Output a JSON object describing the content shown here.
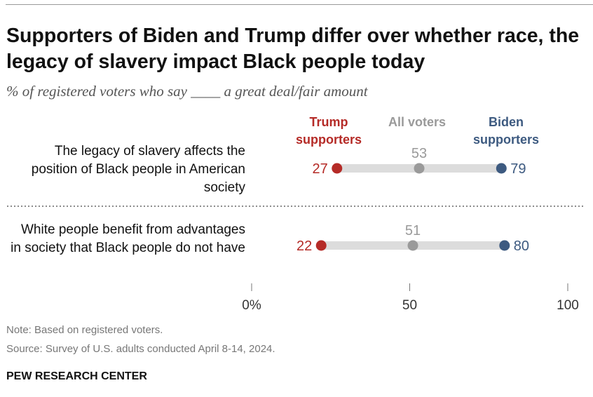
{
  "title": "Supporters of Biden and Trump differ over whether race, the legacy of slavery impact Black people today",
  "subtitle": "% of registered voters who say ____ a great deal/fair amount",
  "legend": {
    "trump": "Trump supporters",
    "all": "All voters",
    "biden": "Biden supporters"
  },
  "colors": {
    "trump": "#b52b27",
    "all": "#9a9a9a",
    "biden": "#3d5a80",
    "bar": "#dcdcdc"
  },
  "chart_data": {
    "type": "dot",
    "categories": [
      "The legacy of slavery affects the position of Black people in American society",
      "White people benefit from advantages in society that Black people do not have"
    ],
    "series": [
      {
        "name": "Trump supporters",
        "values": [
          27,
          22
        ]
      },
      {
        "name": "All voters",
        "values": [
          53,
          51
        ]
      },
      {
        "name": "Biden supporters",
        "values": [
          79,
          80
        ]
      }
    ],
    "xlim": [
      0,
      100
    ],
    "ticks": [
      "0%",
      "50",
      "100"
    ]
  },
  "footer": {
    "note": "Note: Based on registered voters.",
    "source": "Source: Survey of U.S. adults conducted April 8-14, 2024.",
    "brand": "PEW RESEARCH CENTER"
  }
}
